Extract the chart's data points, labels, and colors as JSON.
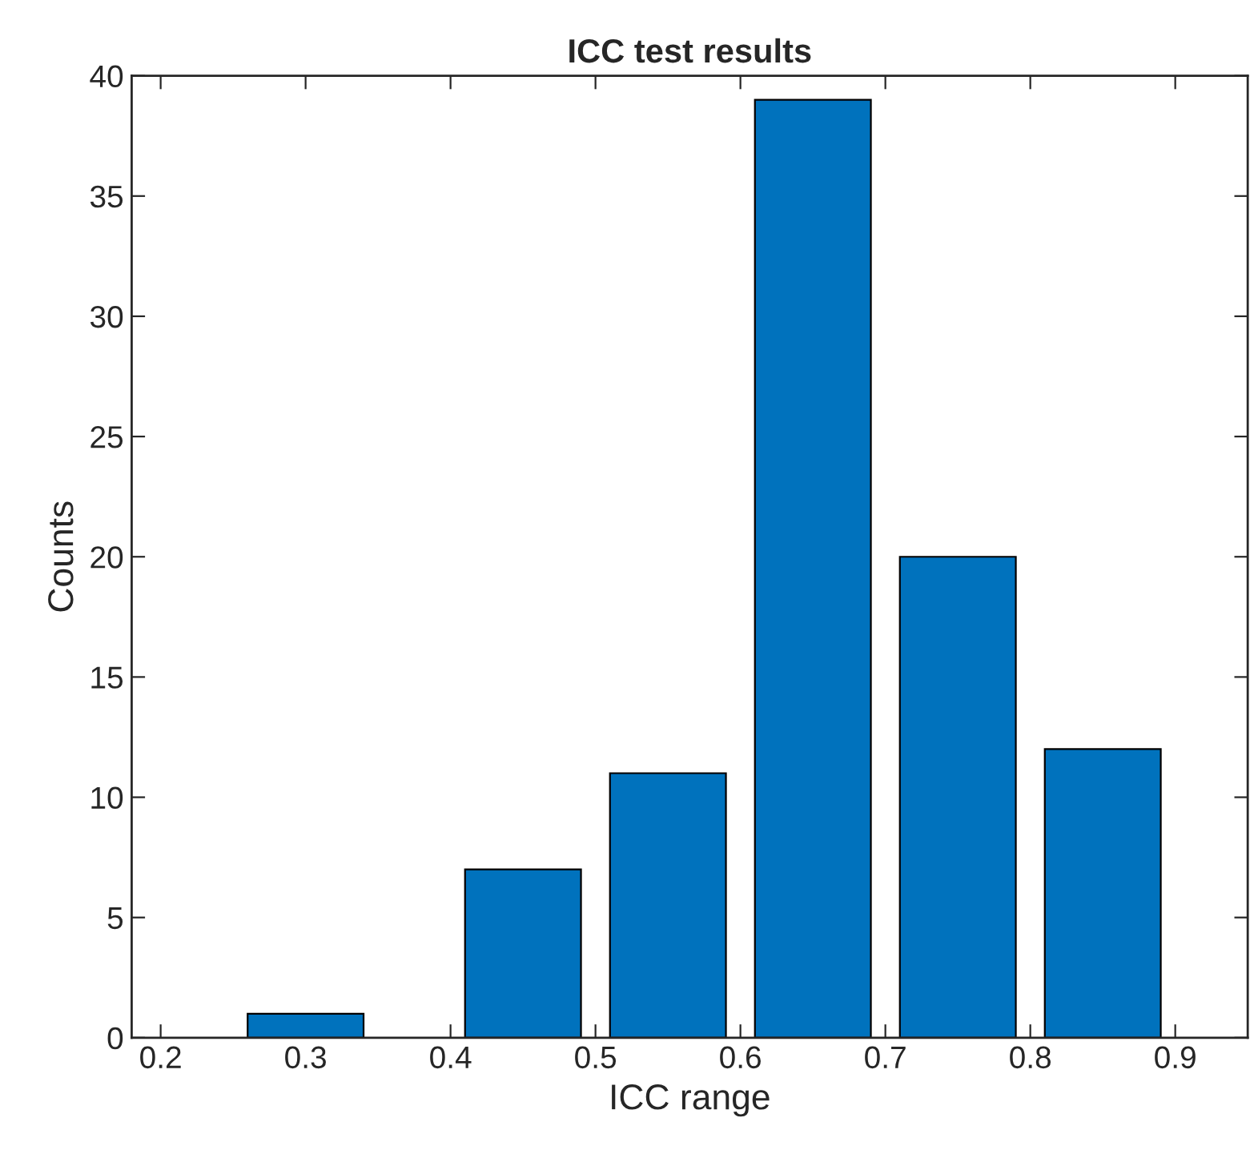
{
  "chart_data": {
    "type": "bar",
    "title": "ICC test results",
    "xlabel": "ICC range",
    "ylabel": "Counts",
    "x": [
      0.3,
      0.45,
      0.55,
      0.65,
      0.75,
      0.85
    ],
    "values": [
      1,
      7,
      11,
      39,
      20,
      12
    ],
    "color": "#0072bd",
    "xlim": [
      0.18,
      0.95
    ],
    "xticks": [
      0.2,
      0.3,
      0.4,
      0.5,
      0.6,
      0.7,
      0.8,
      0.9
    ],
    "ylim": [
      0,
      40
    ],
    "yticks": [
      0,
      5,
      10,
      15,
      20,
      25,
      30,
      35,
      40
    ],
    "grid": false,
    "legend": false
  }
}
